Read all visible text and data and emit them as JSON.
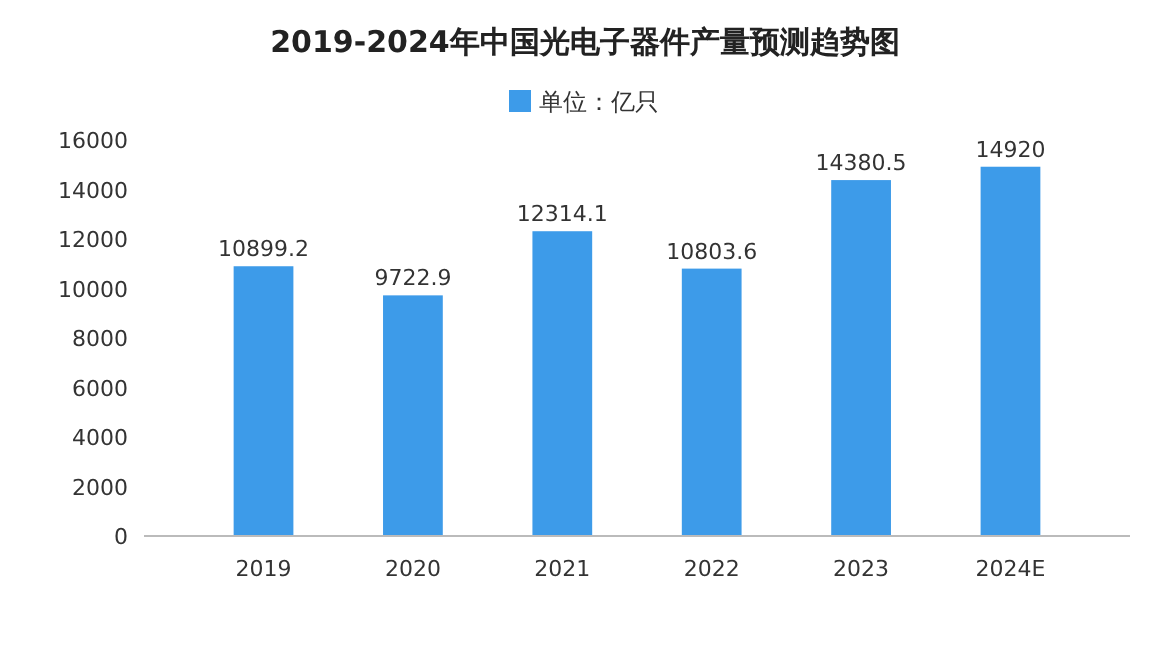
{
  "chart_data": {
    "type": "bar",
    "title": "2019-2024年中国光电子器件产量预测趋势图",
    "categories": [
      "2019",
      "2020",
      "2021",
      "2022",
      "2023",
      "2024E"
    ],
    "series": [
      {
        "name": "单位：亿只",
        "color": "#3d9be9",
        "values": [
          10899.2,
          9722.9,
          12314.1,
          10803.6,
          14380.5,
          14920
        ]
      }
    ],
    "ylim": [
      0,
      16000
    ],
    "yticks": [
      0,
      2000,
      4000,
      6000,
      8000,
      10000,
      12000,
      14000,
      16000
    ],
    "grid": false,
    "legend": "top",
    "data_labels": true
  }
}
